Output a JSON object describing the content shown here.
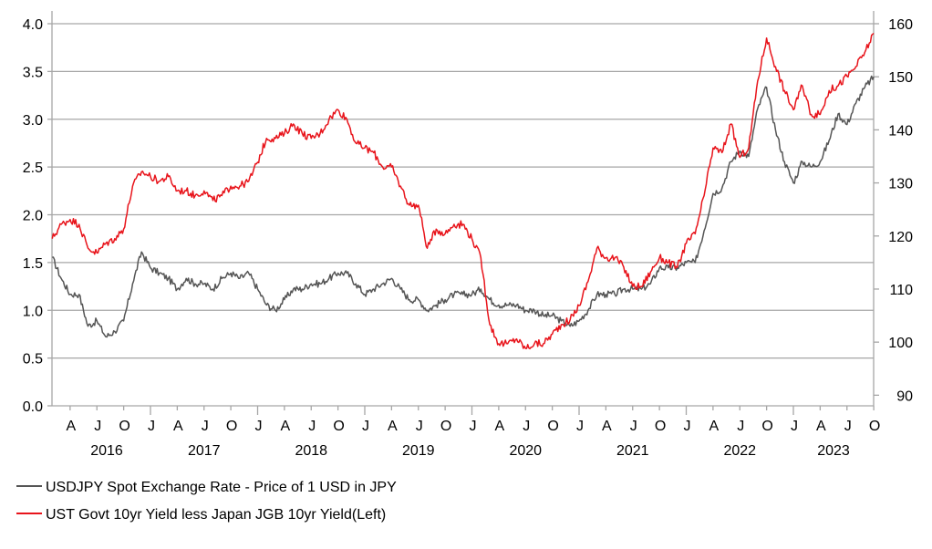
{
  "chart_data": {
    "type": "line",
    "title": "",
    "left_axis": {
      "ylim": [
        0,
        4
      ],
      "ticks": [
        "0.0",
        "0.5",
        "1.0",
        "1.5",
        "2.0",
        "2.5",
        "3.0",
        "3.5",
        "4.0"
      ]
    },
    "right_axis": {
      "ylim": [
        88,
        160
      ],
      "ticks": [
        "90",
        "100",
        "110",
        "120",
        "130",
        "140",
        "150",
        "160"
      ]
    },
    "x_range": [
      "2016-02",
      "2023-10"
    ],
    "month_ticks": [
      "A",
      "J",
      "O",
      "J",
      "A",
      "J",
      "O",
      "J",
      "A",
      "J",
      "O",
      "J",
      "A",
      "J",
      "O",
      "J",
      "A",
      "J",
      "O",
      "J",
      "A",
      "J",
      "O",
      "J",
      "A",
      "J",
      "O",
      "J",
      "A",
      "J",
      "O"
    ],
    "years": [
      "2016",
      "2017",
      "2018",
      "2019",
      "2020",
      "2021",
      "2022",
      "2023"
    ],
    "grid": true,
    "legend_placement": "bottom-left",
    "series": [
      {
        "name": "USDJPY Spot Exchange Rate - Price of 1 USD in JPY",
        "axis": "right",
        "color": "#555555",
        "start": "2016-02",
        "frequency": "monthly",
        "values": [
          116,
          112,
          109,
          109,
          103,
          104,
          101,
          102,
          104,
          111,
          117,
          114,
          113,
          112,
          110,
          112,
          111,
          111,
          110,
          112,
          113,
          112,
          113,
          110,
          107,
          106,
          108,
          110,
          110,
          111,
          111,
          112,
          113,
          113,
          111,
          109,
          110,
          111,
          112,
          110,
          108,
          108,
          106,
          107,
          108,
          109,
          109,
          109,
          110,
          108,
          107,
          107,
          107,
          106,
          106,
          105,
          105,
          104,
          103,
          104,
          106,
          109,
          109,
          109,
          110,
          110,
          110,
          111,
          114,
          114,
          114,
          115,
          115,
          121,
          128,
          129,
          134,
          136,
          135,
          144,
          148,
          140,
          134,
          130,
          134,
          133,
          134,
          138,
          143,
          141,
          145,
          148,
          150
        ]
      },
      {
        "name": "UST Govt 10yr Yield less Japan JGB 10yr Yield(Left)",
        "axis": "left",
        "color": "#e8141b",
        "start": "2016-02",
        "frequency": "monthly",
        "values": [
          1.75,
          1.9,
          1.95,
          1.9,
          1.65,
          1.6,
          1.7,
          1.75,
          1.85,
          2.3,
          2.45,
          2.4,
          2.35,
          2.4,
          2.25,
          2.25,
          2.2,
          2.25,
          2.15,
          2.2,
          2.3,
          2.3,
          2.35,
          2.55,
          2.8,
          2.8,
          2.85,
          2.95,
          2.85,
          2.8,
          2.85,
          3.0,
          3.1,
          3.0,
          2.75,
          2.7,
          2.65,
          2.5,
          2.5,
          2.3,
          2.1,
          2.1,
          1.65,
          1.85,
          1.8,
          1.9,
          1.9,
          1.75,
          1.55,
          0.85,
          0.65,
          0.65,
          0.7,
          0.6,
          0.65,
          0.65,
          0.75,
          0.85,
          0.9,
          1.05,
          1.3,
          1.65,
          1.55,
          1.55,
          1.45,
          1.25,
          1.25,
          1.4,
          1.55,
          1.5,
          1.45,
          1.7,
          1.8,
          2.2,
          2.7,
          2.65,
          2.95,
          2.6,
          2.7,
          3.4,
          3.85,
          3.55,
          3.3,
          3.1,
          3.35,
          3.05,
          3.05,
          3.3,
          3.35,
          3.45,
          3.55,
          3.7,
          3.9
        ]
      }
    ]
  }
}
